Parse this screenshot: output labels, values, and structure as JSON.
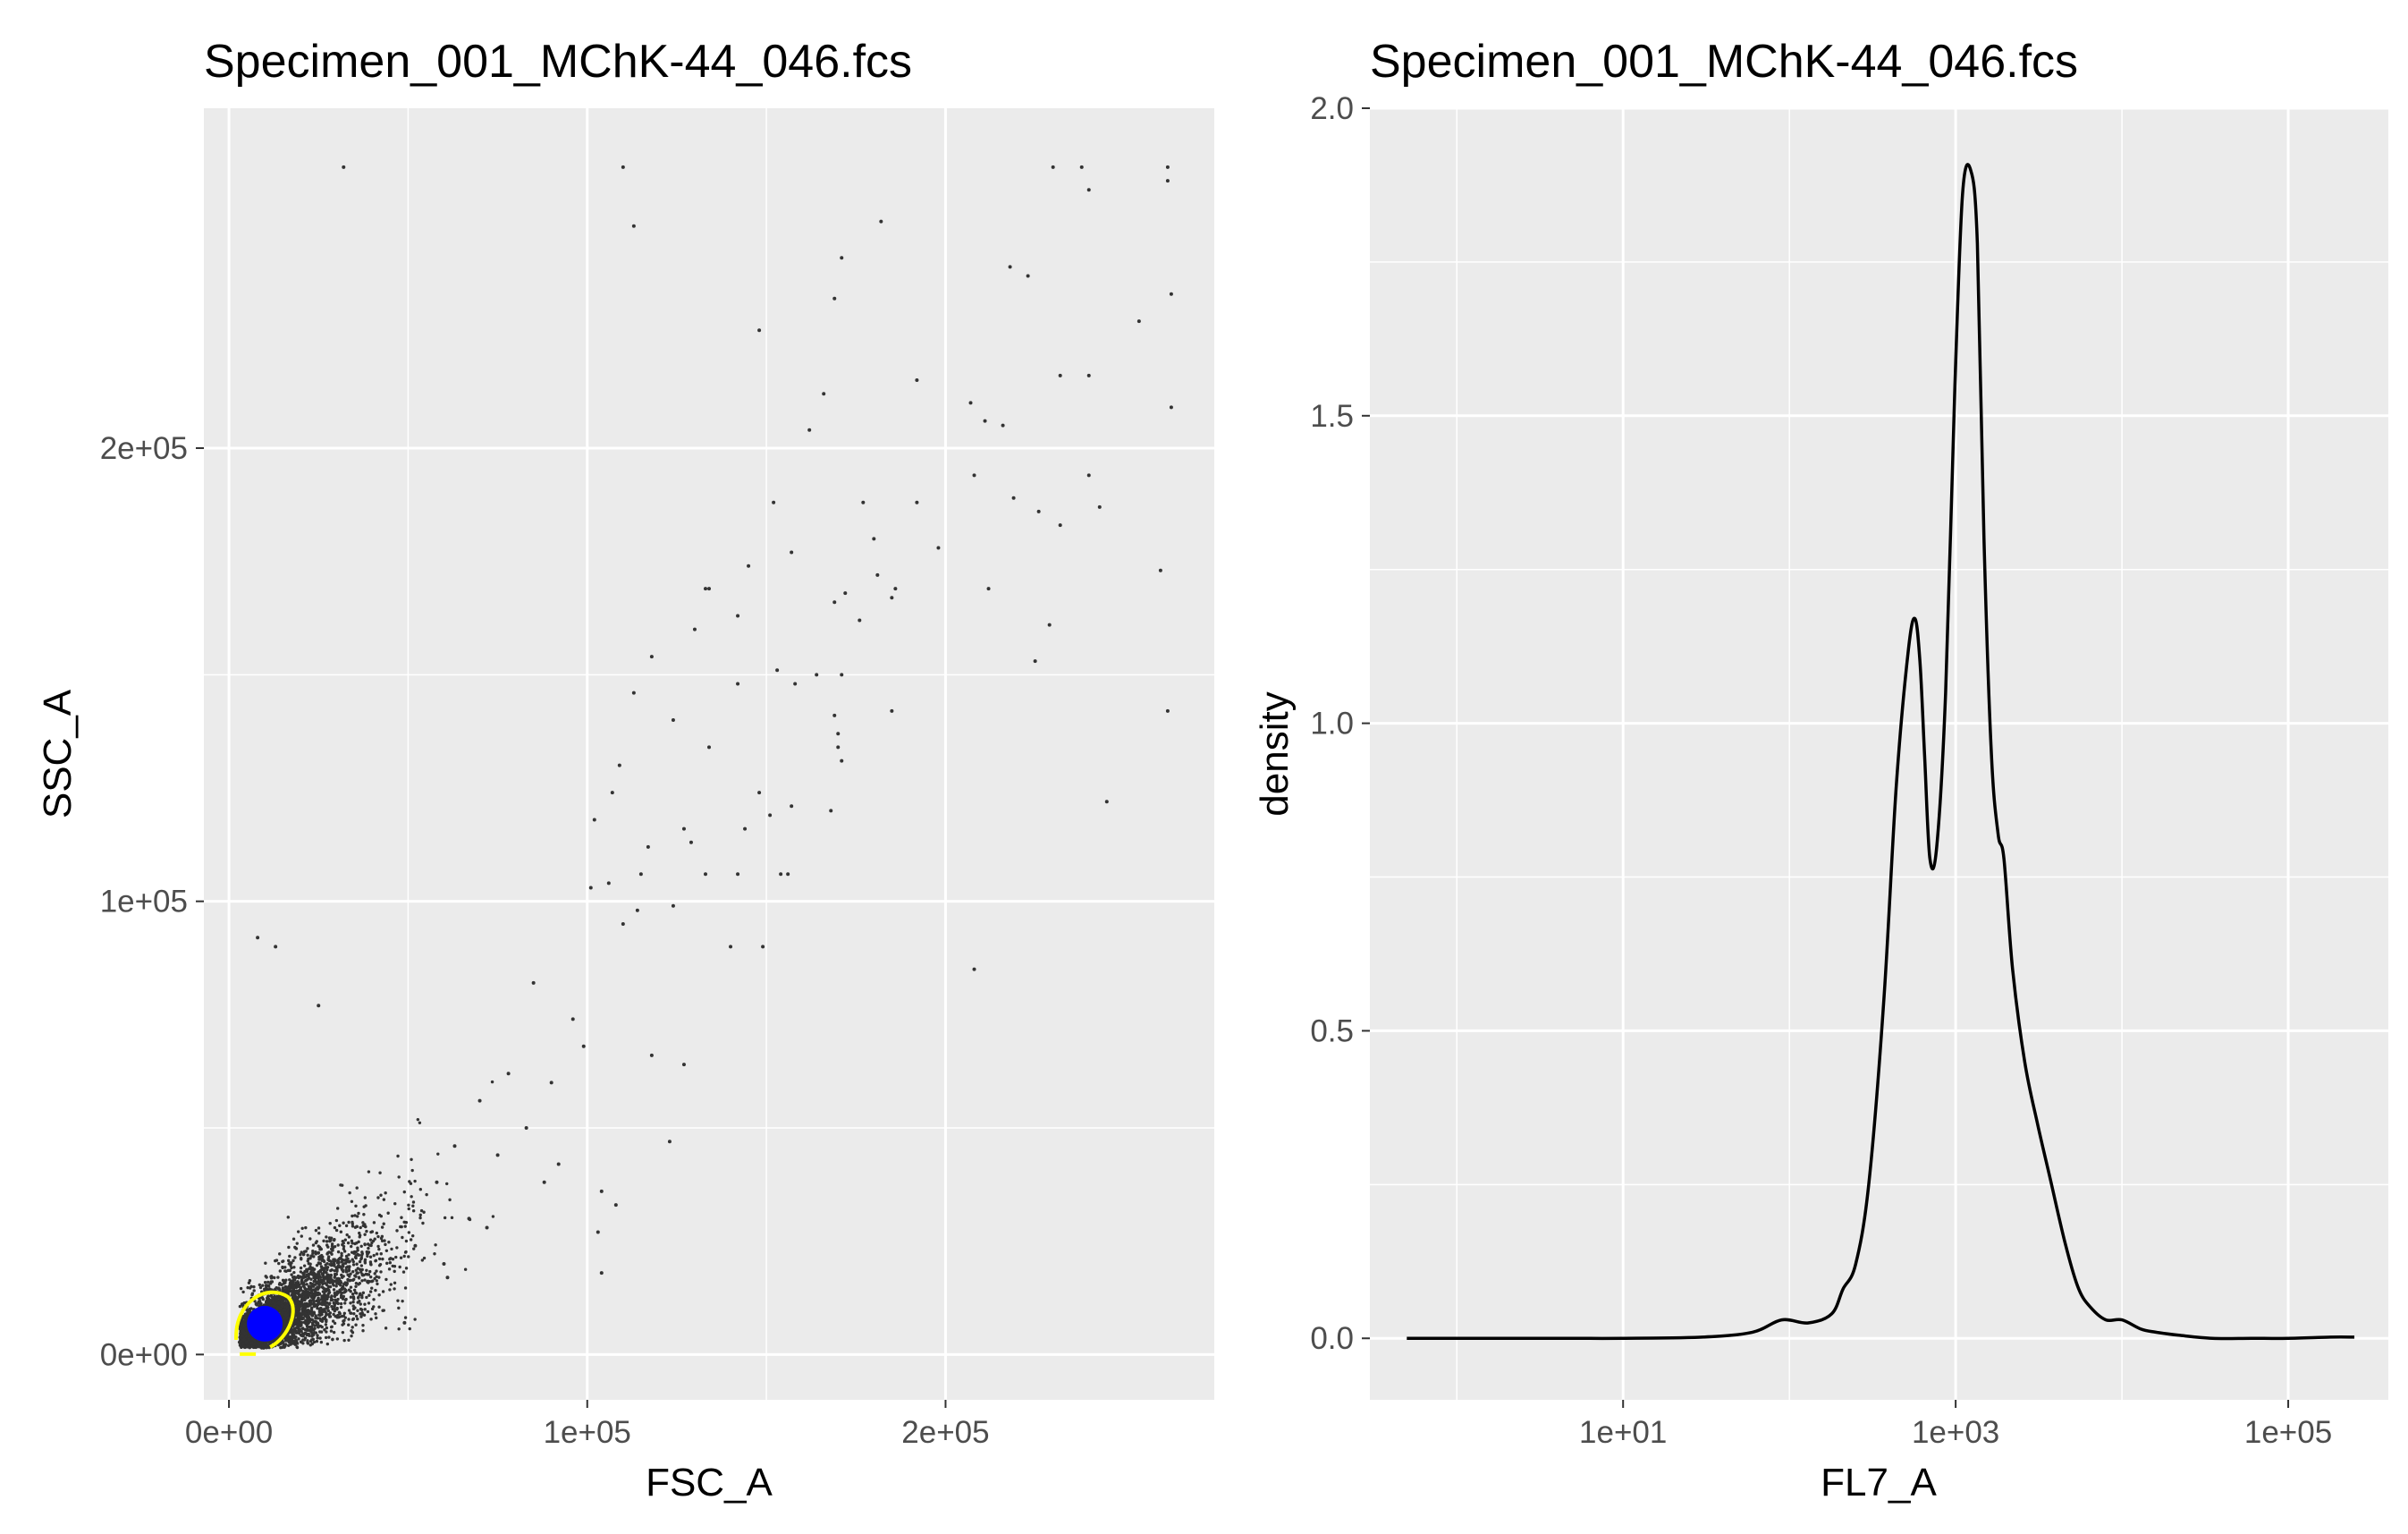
{
  "chart_data": [
    {
      "type": "scatter",
      "title": "Specimen_001_MChK-44_046.fcs",
      "xlabel": "FSC_A",
      "ylabel": "SSC_A",
      "xlim": [
        -7000,
        275000
      ],
      "ylim": [
        -10000,
        275000
      ],
      "x_ticks": [
        0,
        100000,
        200000
      ],
      "x_tick_labels": [
        "0e+00",
        "1e+05",
        "2e+05"
      ],
      "y_ticks": [
        0,
        100000,
        200000
      ],
      "y_tick_labels": [
        "0e+00",
        "1e+05",
        "2e+05"
      ],
      "grid": true,
      "background": "#ebebeb",
      "point_color": "#333333",
      "contour_color": "#ffff00",
      "centroid_color": "#0000ff",
      "centroid": {
        "x": 9000,
        "y": 6000
      },
      "points": [
        [
          32000,
          262000
        ],
        [
          110000,
          262000
        ],
        [
          113000,
          249000
        ],
        [
          230000,
          262000
        ],
        [
          238000,
          262000
        ],
        [
          262000,
          262000
        ],
        [
          262000,
          259000
        ],
        [
          240000,
          257000
        ],
        [
          182000,
          250000
        ],
        [
          171000,
          242000
        ],
        [
          169000,
          233000
        ],
        [
          218000,
          240000
        ],
        [
          223000,
          238000
        ],
        [
          254000,
          228000
        ],
        [
          263000,
          234000
        ],
        [
          148000,
          226000
        ],
        [
          192000,
          215000
        ],
        [
          232000,
          216000
        ],
        [
          240000,
          216000
        ],
        [
          207000,
          210000
        ],
        [
          166000,
          212000
        ],
        [
          162000,
          204000
        ],
        [
          211000,
          206000
        ],
        [
          216000,
          205000
        ],
        [
          263000,
          209000
        ],
        [
          208000,
          194000
        ],
        [
          240000,
          194000
        ],
        [
          152000,
          188000
        ],
        [
          177000,
          188000
        ],
        [
          192000,
          188000
        ],
        [
          219000,
          189000
        ],
        [
          226000,
          186000
        ],
        [
          232000,
          183000
        ],
        [
          243000,
          187000
        ],
        [
          180000,
          180000
        ],
        [
          198000,
          178000
        ],
        [
          145000,
          174000
        ],
        [
          157000,
          177000
        ],
        [
          181000,
          172000
        ],
        [
          186000,
          169000
        ],
        [
          260000,
          173000
        ],
        [
          133000,
          169000
        ],
        [
          134000,
          169000
        ],
        [
          169000,
          166000
        ],
        [
          172000,
          168000
        ],
        [
          212000,
          169000
        ],
        [
          185000,
          167000
        ],
        [
          142000,
          163000
        ],
        [
          176000,
          162000
        ],
        [
          130000,
          160000
        ],
        [
          229000,
          161000
        ],
        [
          225000,
          153000
        ],
        [
          118000,
          154000
        ],
        [
          153000,
          151000
        ],
        [
          164000,
          150000
        ],
        [
          171000,
          150000
        ],
        [
          113000,
          146000
        ],
        [
          142000,
          148000
        ],
        [
          158000,
          148000
        ],
        [
          185000,
          142000
        ],
        [
          169000,
          141000
        ],
        [
          262000,
          142000
        ],
        [
          124000,
          140000
        ],
        [
          170000,
          137000
        ],
        [
          134000,
          134000
        ],
        [
          170000,
          134000
        ],
        [
          171000,
          131000
        ],
        [
          109000,
          130000
        ],
        [
          107000,
          124000
        ],
        [
          102000,
          118000
        ],
        [
          245000,
          122000
        ],
        [
          148000,
          124000
        ],
        [
          157000,
          121000
        ],
        [
          168000,
          120000
        ],
        [
          117000,
          112000
        ],
        [
          127000,
          116000
        ],
        [
          144000,
          116000
        ],
        [
          151000,
          119000
        ],
        [
          129000,
          113000
        ],
        [
          133000,
          106000
        ],
        [
          115000,
          106000
        ],
        [
          142000,
          106000
        ],
        [
          154000,
          106000
        ],
        [
          101000,
          103000
        ],
        [
          106000,
          104000
        ],
        [
          156000,
          106000
        ],
        [
          114000,
          98000
        ],
        [
          124000,
          99000
        ],
        [
          110000,
          95000
        ],
        [
          140000,
          90000
        ],
        [
          149000,
          90000
        ],
        [
          8000,
          92000
        ],
        [
          13000,
          90000
        ],
        [
          208000,
          85000
        ],
        [
          25000,
          77000
        ],
        [
          118000,
          66000
        ],
        [
          127000,
          64000
        ],
        [
          123000,
          47000
        ],
        [
          104000,
          36000
        ],
        [
          108000,
          33000
        ],
        [
          103000,
          27000
        ],
        [
          104000,
          18000
        ],
        [
          49000,
          7000
        ],
        [
          60000,
          20000
        ],
        [
          75000,
          44000
        ],
        [
          83000,
          50000
        ],
        [
          92000,
          42000
        ],
        [
          78000,
          62000
        ],
        [
          99000,
          68000
        ],
        [
          67000,
          30000
        ],
        [
          88000,
          38000
        ],
        [
          96000,
          74000
        ],
        [
          70000,
          56000
        ],
        [
          85000,
          82000
        ],
        [
          63000,
          46000
        ],
        [
          58000,
          38000
        ],
        [
          72000,
          28000
        ],
        [
          90000,
          60000
        ],
        [
          52000,
          24000
        ],
        [
          61000,
          17000
        ]
      ]
    },
    {
      "type": "line",
      "title": "Specimen_001_MChK-44_046.fcs",
      "xlabel": "FL7_A",
      "ylabel": "density",
      "x_scale": "log10",
      "xlim": [
        0.3,
        400000
      ],
      "ylim": [
        -0.1,
        2.0
      ],
      "x_ticks": [
        10,
        1000,
        100000
      ],
      "x_tick_labels": [
        "1e+01",
        "1e+03",
        "1e+05"
      ],
      "y_ticks": [
        0,
        0.5,
        1.0,
        1.5,
        2.0
      ],
      "y_tick_labels": [
        "0.0",
        "0.5",
        "1.0",
        "1.5",
        "2.0"
      ],
      "grid": true,
      "background": "#ebebeb",
      "line_color": "#000000",
      "x": [
        0.5,
        3,
        10,
        30,
        60,
        90,
        130,
        180,
        210,
        250,
        300,
        370,
        440,
        520,
        570,
        610,
        650,
        700,
        770,
        870,
        990,
        1100,
        1230,
        1350,
        1480,
        1640,
        1800,
        1950,
        2200,
        2600,
        3100,
        3700,
        4600,
        5500,
        6500,
        8000,
        10000,
        13000,
        16000,
        22000,
        35000,
        60000,
        100000,
        180000,
        250000
      ],
      "y": [
        0.0,
        0.0,
        0.0,
        0.002,
        0.01,
        0.03,
        0.025,
        0.04,
        0.08,
        0.12,
        0.25,
        0.55,
        0.9,
        1.12,
        1.17,
        1.1,
        0.95,
        0.78,
        0.8,
        1.05,
        1.55,
        1.86,
        1.9,
        1.78,
        1.3,
        0.95,
        0.82,
        0.78,
        0.6,
        0.45,
        0.35,
        0.26,
        0.15,
        0.08,
        0.05,
        0.03,
        0.03,
        0.015,
        0.01,
        0.005,
        0.0,
        0.0,
        0.0,
        0.002,
        0.002
      ]
    }
  ]
}
